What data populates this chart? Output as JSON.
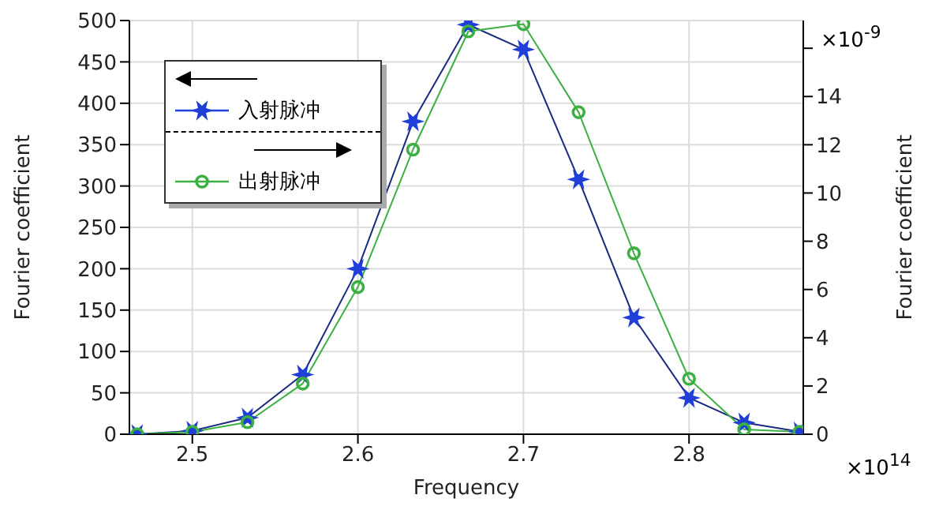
{
  "chart_data": {
    "type": "line",
    "xlabel": "Frequency",
    "ylabel": "Fourier coefficient",
    "y2label": "Fourier coefficient",
    "x": [
      2.4667,
      2.5,
      2.5333,
      2.5667,
      2.6,
      2.6333,
      2.6667,
      2.7,
      2.7333,
      2.7667,
      2.8,
      2.8333,
      2.8667
    ],
    "series": [
      {
        "name": "入射脉冲",
        "color": "#1f3fd6",
        "values": [
          0,
          4,
          20,
          72,
          200,
          378,
          495,
          465,
          308,
          141,
          44,
          14,
          3
        ],
        "marker": "cross"
      },
      {
        "name": "出射脉冲",
        "color": "#3cb043",
        "axis": "y2",
        "values": [
          0,
          0.1,
          0.5,
          2.1,
          6.1,
          11.8,
          16.7,
          17.0,
          13.35,
          7.5,
          2.3,
          0.2,
          0.1
        ],
        "marker": "circle"
      }
    ],
    "xlim": [
      2.462,
      2.869
    ],
    "xticks": [
      2.5,
      2.6,
      2.7,
      2.8
    ],
    "ylim": [
      0,
      500
    ],
    "yticks": [
      0,
      50,
      100,
      150,
      200,
      250,
      300,
      350,
      400,
      450,
      500
    ],
    "y2lim": [
      0,
      17.15
    ],
    "y2ticks": [
      0,
      2,
      4,
      6,
      8,
      10,
      12,
      14,
      {
        "value": 16,
        "label": null
      }
    ],
    "annotations": [
      "×10$^{-9}$",
      "×10$^{14}$"
    ],
    "grid": true,
    "legend": "top left",
    "line_style": "solid"
  }
}
